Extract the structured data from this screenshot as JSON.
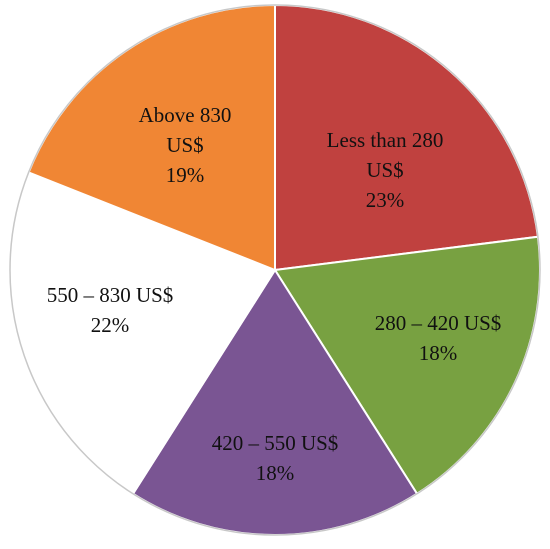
{
  "chart_data": {
    "type": "pie",
    "categories": [
      "Less than 280 US$",
      "280 – 420 US$",
      "420 – 550 US$",
      "550 – 830 US$",
      "Above 830 US$"
    ],
    "values": [
      23,
      18,
      18,
      22,
      19
    ],
    "value_labels": [
      "23%",
      "18%",
      "18%",
      "22%",
      "19%"
    ],
    "colors": [
      "#c0413f",
      "#78a141",
      "#7a5593",
      "#ffffff",
      "#f08634"
    ]
  }
}
